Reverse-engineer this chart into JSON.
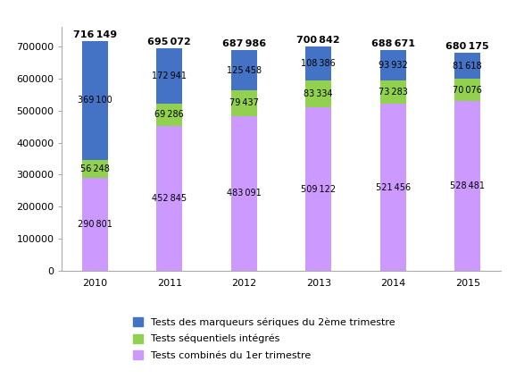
{
  "years": [
    "2010",
    "2011",
    "2012",
    "2013",
    "2014",
    "2015"
  ],
  "tests_combinés": [
    290801,
    452845,
    483091,
    509122,
    521456,
    528481
  ],
  "tests_séquentiels": [
    56248,
    69286,
    79437,
    83334,
    73283,
    70076
  ],
  "tests_marqueurs": [
    369100,
    172941,
    125458,
    108386,
    93932,
    81618
  ],
  "totals": [
    716149,
    695072,
    687986,
    700842,
    688671,
    680175
  ],
  "color_combinés": "#CC99FF",
  "color_séquentiels": "#92D050",
  "color_marqueurs": "#4472C4",
  "bar_width": 0.35,
  "ylim": [
    0,
    760000
  ],
  "yticks": [
    0,
    100000,
    200000,
    300000,
    400000,
    500000,
    600000,
    700000
  ],
  "legend_labels": [
    "Tests des marqueurs sériques du 2ème trimestre",
    "Tests séquentiels intégrés",
    "Tests combinés du 1er trimestre"
  ],
  "total_fontsize": 8,
  "value_fontsize": 7,
  "axis_fontsize": 8
}
